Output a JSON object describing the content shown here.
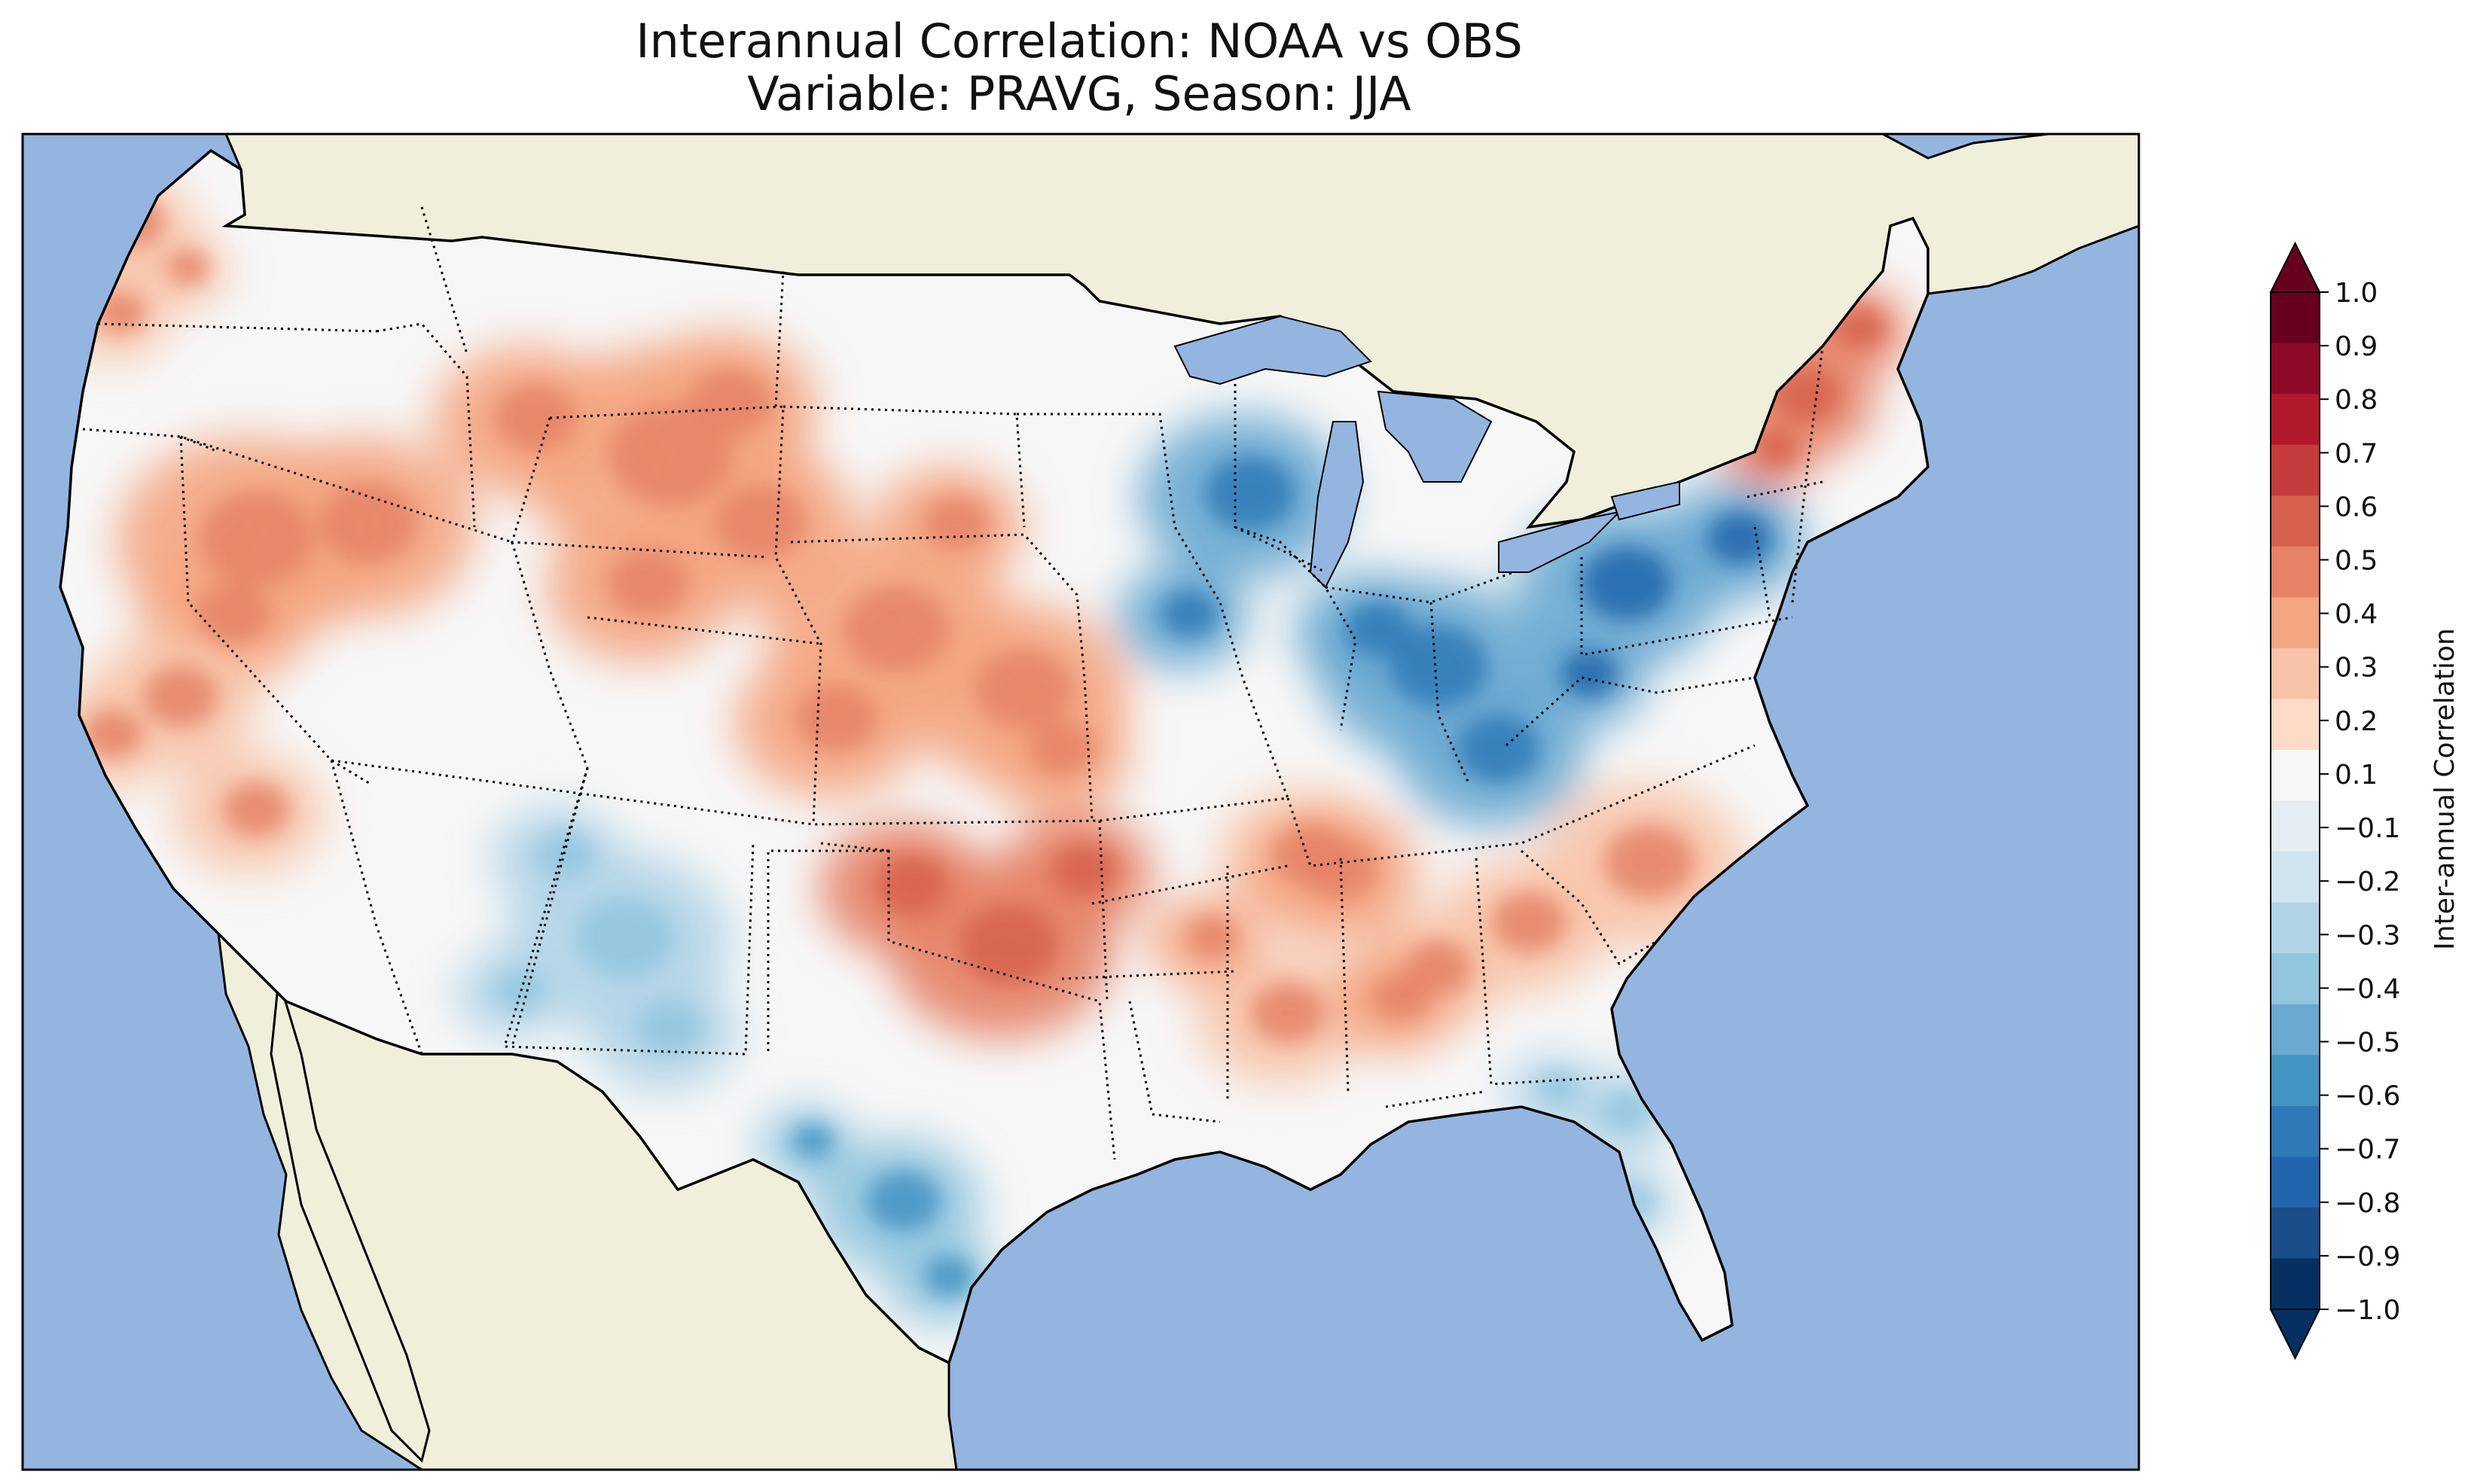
{
  "figure": {
    "title_line1": "Interannual Correlation: NOAA vs OBS",
    "title_line2": "Variable: PRAVG, Season: JJA"
  },
  "colors": {
    "ocean": "#94b5e0",
    "land_outside": "#efefdc",
    "coast": "#000000",
    "borders": "#000000"
  },
  "colorbar": {
    "label": "Inter-annual Correlation",
    "ticks": [
      "1.0",
      "0.9",
      "0.8",
      "0.7",
      "0.6",
      "0.5",
      "0.4",
      "0.3",
      "0.2",
      "0.1",
      "−0.1",
      "−0.2",
      "−0.3",
      "−0.4",
      "−0.5",
      "−0.6",
      "−0.7",
      "−0.8",
      "−0.9",
      "−1.0"
    ],
    "range": [
      -1.0,
      1.0
    ],
    "extend": "both",
    "colors_top_to_bottom": [
      "#67001f",
      "#8c0a26",
      "#b2182b",
      "#c43c3c",
      "#d6604d",
      "#e58267",
      "#f4a582",
      "#f7c4a9",
      "#fddbc7",
      "#f7f7f7",
      "#e3edf3",
      "#d1e5f0",
      "#b2d4e7",
      "#92c5de",
      "#6aa9d0",
      "#4393c3",
      "#3079b7",
      "#2166ac",
      "#1a4d8a",
      "#053061"
    ]
  },
  "chart_data": {
    "type": "heatmap",
    "title": "Interannual Correlation: NOAA vs OBS\nVariable: PRAVG, Season: JJA",
    "colorbar_label": "Inter-annual Correlation",
    "vmin": -1.0,
    "vmax": 1.0,
    "regions": [
      {
        "name": "Pacific Northwest coast",
        "value": 0.4
      },
      {
        "name": "Nevada / Great Basin",
        "value": 0.5
      },
      {
        "name": "Central California",
        "value": 0.4
      },
      {
        "name": "Montana / Wyoming",
        "value": 0.5
      },
      {
        "name": "Kansas / Nebraska",
        "value": 0.5
      },
      {
        "name": "Great Lakes / Ohio Valley",
        "value": -0.6
      },
      {
        "name": "Pennsylvania / New York",
        "value": -0.7
      },
      {
        "name": "New England",
        "value": 0.6
      },
      {
        "name": "Oklahoma / Texas border",
        "value": 0.6
      },
      {
        "name": "Arizona / New Mexico",
        "value": -0.4
      },
      {
        "name": "Southeast / Carolinas",
        "value": 0.4
      },
      {
        "name": "Florida",
        "value": -0.4
      },
      {
        "name": "South Texas",
        "value": -0.5
      },
      {
        "name": "Tennessee / Alabama",
        "value": 0.5
      }
    ]
  }
}
